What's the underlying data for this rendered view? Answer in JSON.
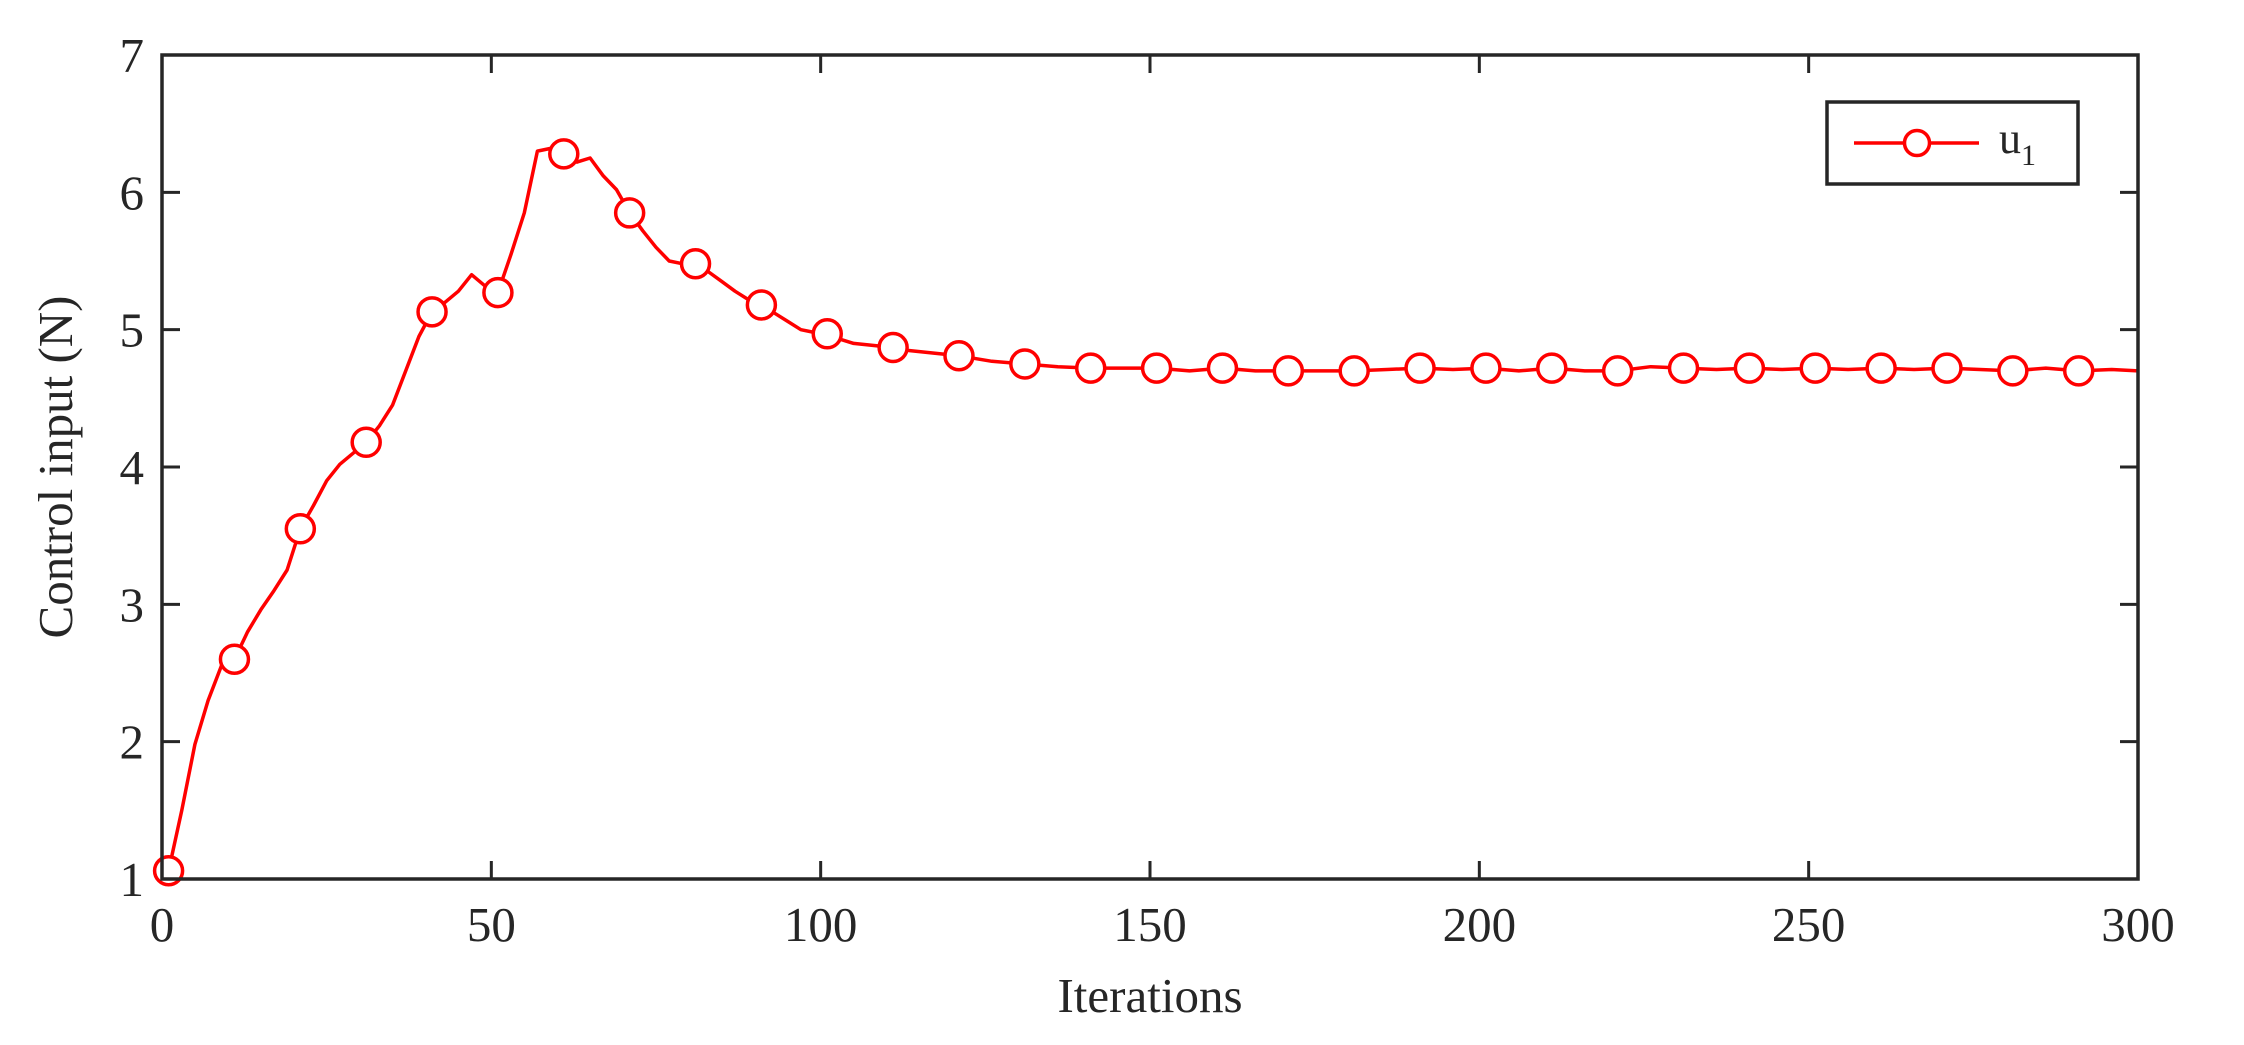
{
  "chart_data": {
    "type": "line",
    "title": "",
    "xlabel": "Iterations",
    "ylabel": "Control input (N)",
    "xlim": [
      0,
      300
    ],
    "ylim": [
      1,
      7
    ],
    "xticks": [
      0,
      50,
      100,
      150,
      200,
      250,
      300
    ],
    "yticks": [
      1,
      2,
      3,
      4,
      5,
      6,
      7
    ],
    "xtick_labels": [
      "0",
      "50",
      "100",
      "150",
      "200",
      "250",
      "300"
    ],
    "ytick_labels": [
      "1",
      "2",
      "3",
      "4",
      "5",
      "6",
      "7"
    ],
    "grid": false,
    "legend_position": "top-right",
    "series": [
      {
        "name": "u",
        "name_subscript": "1",
        "color": "#ff0000",
        "marker": "circle",
        "marker_step": 10,
        "x": [
          1,
          3,
          5,
          7,
          9,
          11,
          13,
          15,
          17,
          19,
          21,
          23,
          25,
          27,
          29,
          31,
          33,
          35,
          37,
          39,
          41,
          43,
          45,
          47,
          49,
          51,
          53,
          55,
          57,
          59,
          61,
          63,
          65,
          67,
          69,
          71,
          73,
          75,
          77,
          79,
          81,
          83,
          85,
          87,
          89,
          91,
          93,
          95,
          97,
          99,
          101,
          103,
          105,
          107,
          109,
          111,
          113,
          115,
          117,
          119,
          121,
          126,
          131,
          136,
          141,
          146,
          151,
          156,
          161,
          166,
          171,
          176,
          181,
          186,
          191,
          196,
          201,
          206,
          211,
          216,
          221,
          226,
          231,
          236,
          241,
          246,
          251,
          256,
          261,
          266,
          271,
          276,
          281,
          286,
          291,
          296,
          300
        ],
        "y": [
          1.06,
          1.5,
          1.98,
          2.3,
          2.55,
          2.6,
          2.8,
          2.96,
          3.1,
          3.25,
          3.55,
          3.72,
          3.9,
          4.02,
          4.1,
          4.18,
          4.3,
          4.45,
          4.7,
          4.95,
          5.13,
          5.2,
          5.28,
          5.4,
          5.32,
          5.27,
          5.55,
          5.85,
          6.3,
          6.32,
          6.28,
          6.22,
          6.25,
          6.12,
          6.02,
          5.85,
          5.72,
          5.6,
          5.5,
          5.48,
          5.48,
          5.42,
          5.35,
          5.28,
          5.22,
          5.18,
          5.12,
          5.06,
          5.0,
          4.98,
          4.97,
          4.93,
          4.9,
          4.89,
          4.88,
          4.87,
          4.85,
          4.84,
          4.83,
          4.82,
          4.81,
          4.77,
          4.75,
          4.73,
          4.72,
          4.72,
          4.72,
          4.7,
          4.72,
          4.7,
          4.7,
          4.7,
          4.7,
          4.71,
          4.72,
          4.71,
          4.72,
          4.7,
          4.72,
          4.7,
          4.7,
          4.73,
          4.72,
          4.71,
          4.72,
          4.71,
          4.72,
          4.71,
          4.72,
          4.71,
          4.72,
          4.71,
          4.7,
          4.72,
          4.7,
          4.71,
          4.7
        ]
      }
    ]
  }
}
